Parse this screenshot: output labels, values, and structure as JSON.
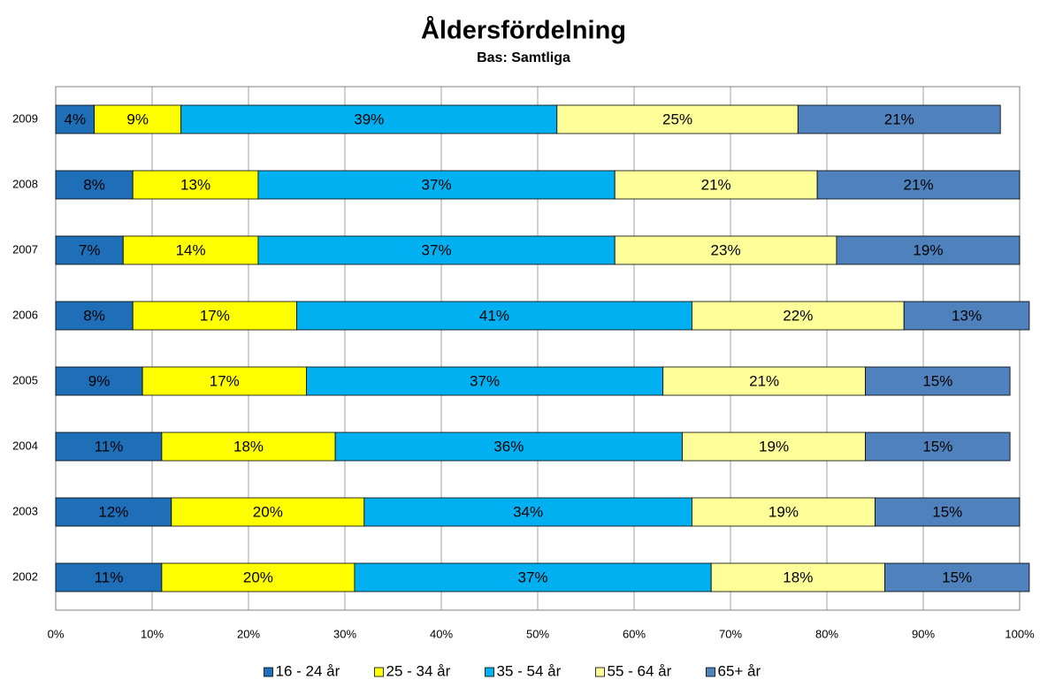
{
  "chart_data": {
    "type": "stacked_bar_horizontal",
    "title": "Åldersfördelning",
    "subtitle": "Bas: Samtliga",
    "categories": [
      "2009",
      "2008",
      "2007",
      "2006",
      "2005",
      "2004",
      "2003",
      "2002"
    ],
    "series": [
      {
        "name": "16 - 24 år",
        "color": "#1f6fb8",
        "values": [
          4,
          8,
          7,
          8,
          9,
          11,
          12,
          11
        ],
        "value_labels": [
          "4%",
          "8%",
          "7%",
          "8%",
          "9%",
          "11%",
          "12%",
          "11%"
        ]
      },
      {
        "name": "25 - 34 år",
        "color": "#ffff00",
        "values": [
          9,
          13,
          14,
          17,
          17,
          18,
          20,
          20
        ],
        "value_labels": [
          "9%",
          "13%",
          "14%",
          "17%",
          "17%",
          "18%",
          "20%",
          "20%"
        ]
      },
      {
        "name": "35 - 54 år",
        "color": "#00b0f0",
        "values": [
          39,
          37,
          37,
          41,
          37,
          36,
          34,
          37
        ],
        "value_labels": [
          "39%",
          "37%",
          "37%",
          "41%",
          "37%",
          "36%",
          "34%",
          "37%"
        ]
      },
      {
        "name": "55 - 64 år",
        "color": "#ffff99",
        "values": [
          25,
          21,
          23,
          22,
          21,
          19,
          19,
          18
        ],
        "value_labels": [
          "25%",
          "21%",
          "23%",
          "22%",
          "21%",
          "19%",
          "19%",
          "18%"
        ]
      },
      {
        "name": "65+ år",
        "color": "#4f81bd",
        "values": [
          21,
          21,
          19,
          13,
          15,
          15,
          15,
          15
        ],
        "value_labels": [
          "21%",
          "21%",
          "19%",
          "13%",
          "15%",
          "15%",
          "15%",
          "15%"
        ]
      }
    ],
    "xlim": [
      0,
      100
    ],
    "xticks": [
      {
        "value": 0,
        "label": "0%"
      },
      {
        "value": 10,
        "label": "10%"
      },
      {
        "value": 20,
        "label": "20%"
      },
      {
        "value": 30,
        "label": "30%"
      },
      {
        "value": 40,
        "label": "40%"
      },
      {
        "value": 50,
        "label": "50%"
      },
      {
        "value": 60,
        "label": "60%"
      },
      {
        "value": 70,
        "label": "70%"
      },
      {
        "value": 80,
        "label": "80%"
      },
      {
        "value": 90,
        "label": "90%"
      },
      {
        "value": 100,
        "label": "100%"
      }
    ],
    "grid": true,
    "legend": "bottom"
  }
}
